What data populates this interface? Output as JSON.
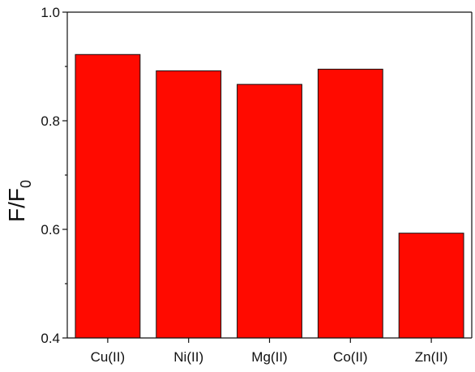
{
  "chart_data": {
    "type": "bar",
    "categories": [
      "Cu(II)",
      "Ni(II)",
      "Mg(II)",
      "Co(II)",
      "Zn(II)"
    ],
    "values": [
      0.922,
      0.892,
      0.867,
      0.895,
      0.593
    ],
    "title": "",
    "xlabel": "",
    "ylabel_main": "F/F",
    "ylabel_sub": "0",
    "ylim": [
      0.4,
      1.0
    ],
    "yticks": [
      0.4,
      0.6,
      0.8,
      1.0
    ],
    "ytick_labels": [
      "0.4",
      "0.6",
      "0.8",
      "1.0"
    ],
    "bar_color": "#ff0a00",
    "grid": false,
    "legend": "none"
  }
}
